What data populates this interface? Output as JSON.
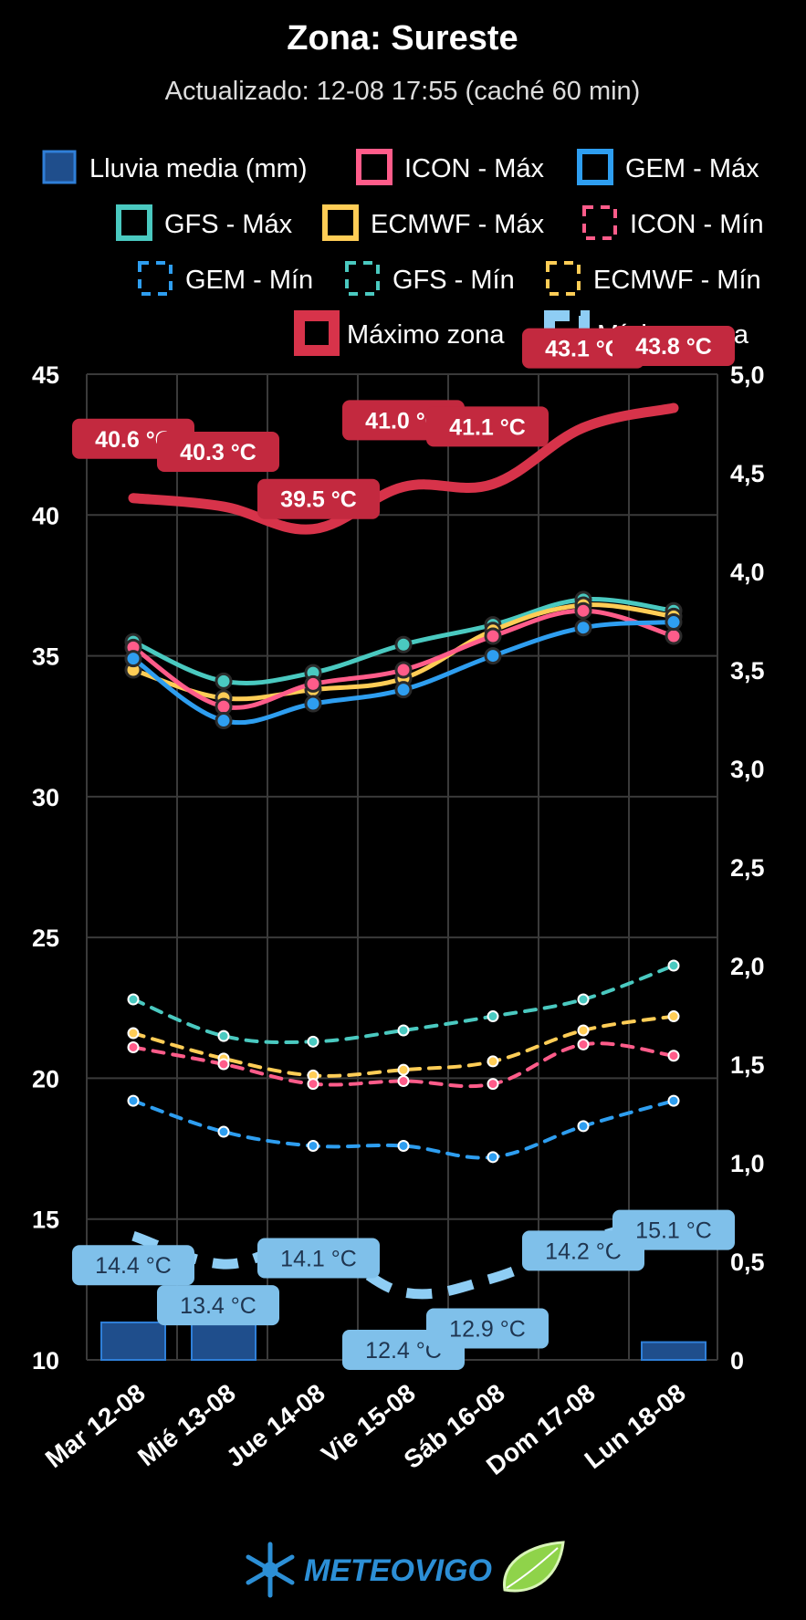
{
  "header": {
    "title": "Zona: Sureste",
    "subtitle": "Actualizado: 12-08 17:55 (caché 60 min)"
  },
  "logo": {
    "text": "METEOVIGO"
  },
  "chart_data": {
    "type": "line",
    "categories": [
      "Mar 12-08",
      "Mié 13-08",
      "Jue 14-08",
      "Vie 15-08",
      "Sáb 16-08",
      "Dom 17-08",
      "Lun 18-08"
    ],
    "y_left": {
      "min": 10,
      "max": 45,
      "ticks": [
        "10",
        "15",
        "20",
        "25",
        "30",
        "35",
        "40",
        "45"
      ]
    },
    "y_right": {
      "min": 0,
      "max": 5,
      "ticks": [
        "0",
        "0,5",
        "1,0",
        "1,5",
        "2,0",
        "2,5",
        "3,0",
        "3,5",
        "4,0",
        "4,5",
        "5,0"
      ]
    },
    "grid": true,
    "rain": {
      "name": "Lluvia media (mm)",
      "color": "#1f4e8c",
      "border": "#2f7fd8",
      "values": [
        0.19,
        0.2,
        0,
        0,
        0,
        0,
        0.09
      ]
    },
    "series": [
      {
        "name": "ICON - Máx",
        "color": "#ff5c8a",
        "style": "solid",
        "values": [
          35.3,
          33.2,
          34.0,
          34.5,
          35.7,
          36.6,
          35.7
        ]
      },
      {
        "name": "GEM - Máx",
        "color": "#2e9ef0",
        "style": "solid",
        "values": [
          34.9,
          32.7,
          33.3,
          33.8,
          35.0,
          36.0,
          36.2
        ]
      },
      {
        "name": "GFS - Máx",
        "color": "#4ac9c0",
        "style": "solid",
        "values": [
          35.5,
          34.1,
          34.4,
          35.4,
          36.1,
          37.0,
          36.6
        ]
      },
      {
        "name": "ECMWF - Máx",
        "color": "#ffcd56",
        "style": "solid",
        "values": [
          34.5,
          33.5,
          33.8,
          34.2,
          35.9,
          36.8,
          36.4
        ]
      },
      {
        "name": "ICON - Mín",
        "color": "#ff5c8a",
        "style": "dashed",
        "values": [
          21.1,
          20.5,
          19.8,
          19.9,
          19.8,
          21.2,
          20.8
        ]
      },
      {
        "name": "GEM - Mín",
        "color": "#2e9ef0",
        "style": "dashed",
        "values": [
          19.2,
          18.1,
          17.6,
          17.6,
          17.2,
          18.3,
          19.2
        ]
      },
      {
        "name": "GFS - Mín",
        "color": "#4ac9c0",
        "style": "dashed",
        "values": [
          22.8,
          21.5,
          21.3,
          21.7,
          22.2,
          22.8,
          24.0
        ]
      },
      {
        "name": "ECMWF - Mín",
        "color": "#ffcd56",
        "style": "dashed",
        "values": [
          21.6,
          20.7,
          20.1,
          20.3,
          20.6,
          21.7,
          22.2
        ]
      },
      {
        "name": "Máximo zona",
        "color": "#d7334a",
        "style": "thick",
        "values": [
          40.6,
          40.3,
          39.5,
          41.0,
          41.1,
          43.1,
          43.8
        ],
        "labels": [
          "40.6 °C",
          "40.3 °C",
          "39.5 °C",
          "41.0 °C",
          "41.1 °C",
          "43.1 °C",
          "43.8 °C"
        ]
      },
      {
        "name": "Mínimo zona",
        "color": "#8ecdf4",
        "style": "thick-dashed",
        "values": [
          14.4,
          13.4,
          14.1,
          12.4,
          12.9,
          14.2,
          15.1
        ],
        "labels": [
          "14.4 °C",
          "13.4 °C",
          "14.1 °C",
          "12.4 °C",
          "12.9 °C",
          "14.2 °C",
          "15.1 °C"
        ]
      }
    ]
  }
}
